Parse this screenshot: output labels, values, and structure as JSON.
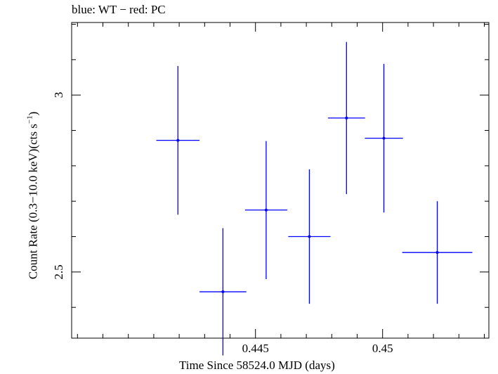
{
  "chart_data": {
    "type": "scatter",
    "title": "blue: WT − red: PC",
    "xlabel": "Time Since 58524.0 MJD (days)",
    "ylabel_main": "Count Rate (0.3−10.0 keV)(cts s",
    "ylabel_exp": "−1",
    "ylabel_end": ")",
    "xlim": [
      0.43777,
      0.45418
    ],
    "ylim": [
      2.313,
      3.205
    ],
    "x_ticks": [
      {
        "value": 0.445,
        "label": "0.445"
      },
      {
        "value": 0.45,
        "label": "0.45"
      }
    ],
    "y_ticks": [
      {
        "value": 2.5,
        "label": "2.5"
      },
      {
        "value": 3.0,
        "label": "3"
      }
    ],
    "x_minor_step": 0.001,
    "y_minor_step": 0.1,
    "grid": false,
    "series": [
      {
        "color": "#0000ff",
        "points": [
          {
            "x": 0.44195,
            "xerr": 0.00085,
            "y": 2.872,
            "yerr_low": 0.21,
            "yerr_high": 0.21
          },
          {
            "x": 0.44372,
            "xerr": 0.00092,
            "y": 2.444,
            "yerr_low": 0.18,
            "yerr_high": 0.18
          },
          {
            "x": 0.44542,
            "xerr": 0.00083,
            "y": 2.675,
            "yerr_low": 0.195,
            "yerr_high": 0.195
          },
          {
            "x": 0.44712,
            "xerr": 0.00083,
            "y": 2.6,
            "yerr_low": 0.19,
            "yerr_high": 0.19
          },
          {
            "x": 0.44858,
            "xerr": 0.00073,
            "y": 2.935,
            "yerr_low": 0.215,
            "yerr_high": 0.215
          },
          {
            "x": 0.45005,
            "xerr": 0.00075,
            "y": 2.878,
            "yerr_low": 0.21,
            "yerr_high": 0.21
          },
          {
            "x": 0.45215,
            "xerr": 0.00138,
            "y": 2.555,
            "yerr_low": 0.145,
            "yerr_high": 0.145
          }
        ]
      }
    ]
  }
}
